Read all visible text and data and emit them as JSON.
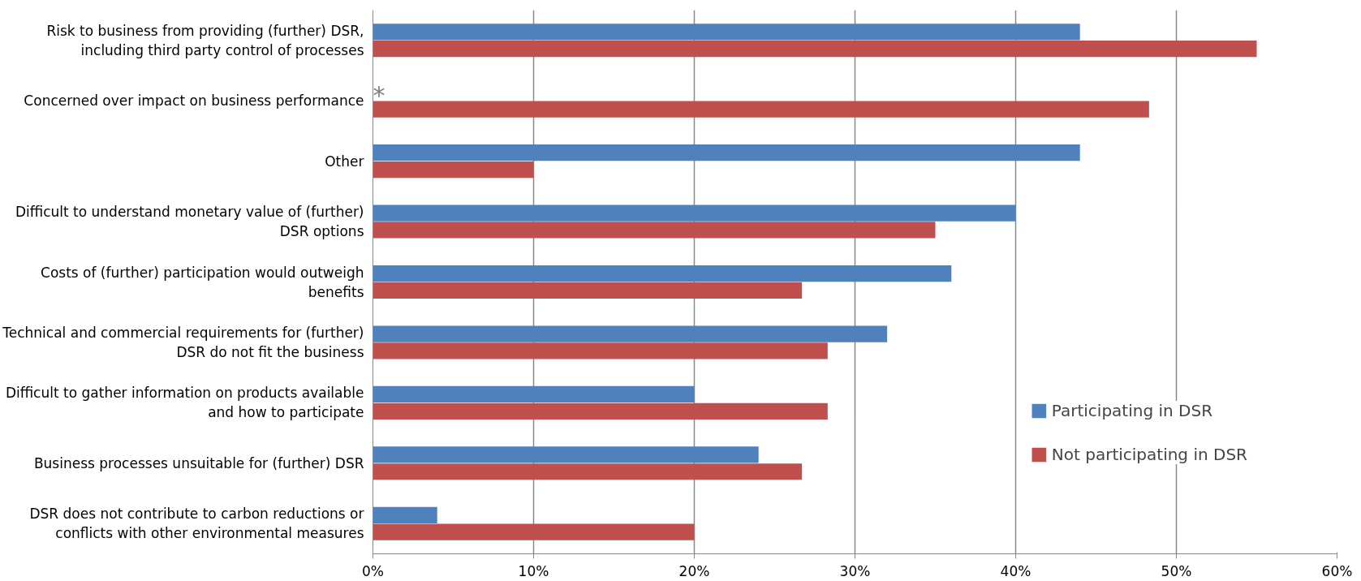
{
  "chart_data": {
    "type": "bar",
    "orientation": "horizontal",
    "categories": [
      "Risk to business from providing (further) DSR, including third party control of processes",
      "Concerned over impact on business performance",
      "Other",
      "Difficult to understand monetary value of (further) DSR options",
      "Costs of (further) participation would outweigh benefits",
      "Technical and commercial requirements for (further) DSR do not fit the business",
      "Difficult to gather information on products available and how to participate",
      "Business processes unsuitable for (further) DSR",
      "DSR does not contribute to carbon reductions or conflicts with other environmental measures"
    ],
    "series": [
      {
        "name": "Participating in DSR",
        "color": "#4f81bd",
        "values": [
          44,
          null,
          44,
          40,
          36,
          32,
          20,
          24,
          4
        ]
      },
      {
        "name": "Not participating in DSR",
        "color": "#c0504d",
        "values": [
          55,
          48.3,
          10,
          35,
          26.7,
          28.3,
          28.3,
          26.7,
          20
        ]
      }
    ],
    "xlim": [
      0,
      60
    ],
    "xticks": [
      {
        "value": 0,
        "label": "0%"
      },
      {
        "value": 10,
        "label": "10%"
      },
      {
        "value": 20,
        "label": "20%"
      },
      {
        "value": 30,
        "label": "30%"
      },
      {
        "value": 40,
        "label": "40%"
      },
      {
        "value": 50,
        "label": "50%"
      },
      {
        "value": 60,
        "label": "60%"
      }
    ],
    "grid": "x",
    "legend": "bottom right",
    "annotations": [
      {
        "text": "*",
        "x": 0,
        "y": "Concerned over impact on business performance"
      }
    ]
  }
}
